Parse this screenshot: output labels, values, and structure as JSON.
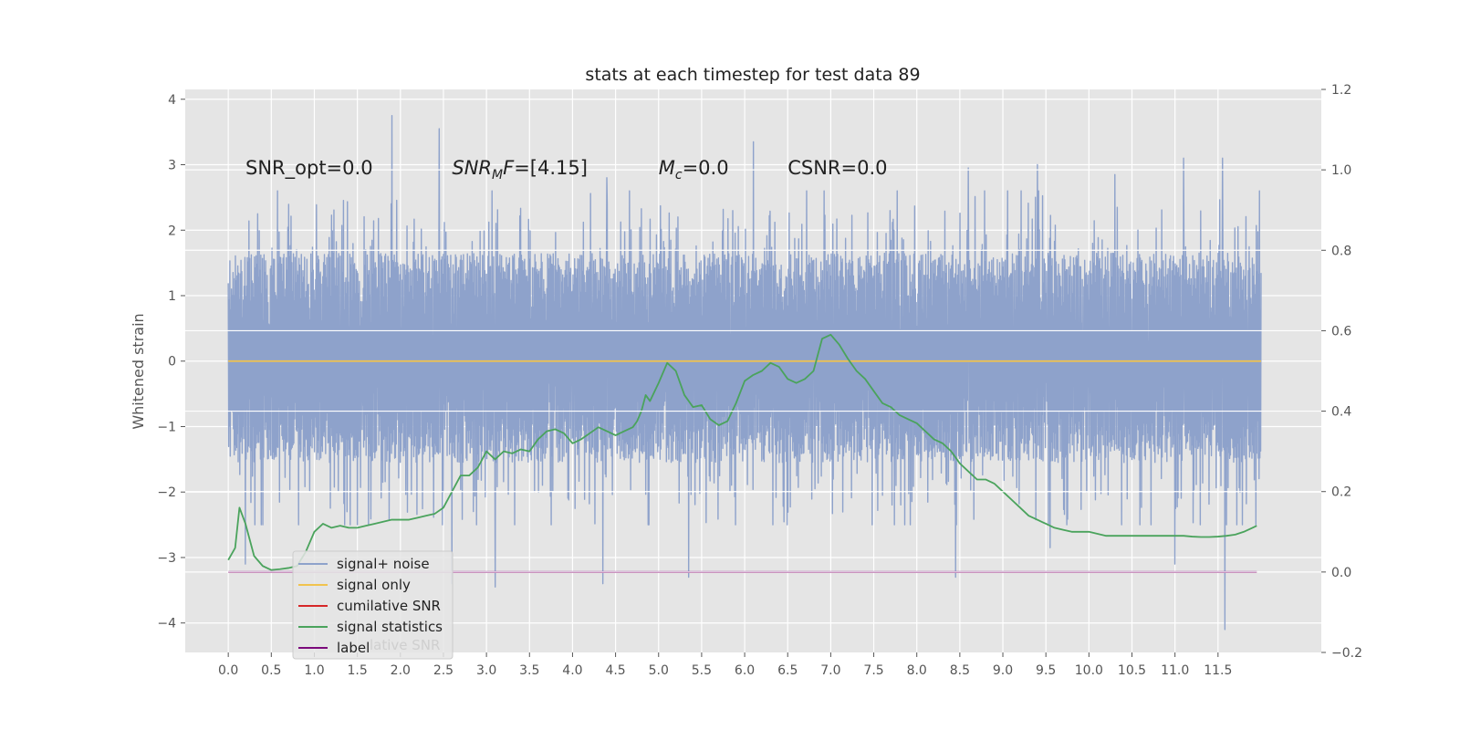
{
  "chart_data": {
    "type": "line",
    "title": "stats at each timestep for test data 89",
    "ylabel": "Whitened strain",
    "y2label": "",
    "xlabel": "",
    "xlim": [
      -0.5,
      12.7
    ],
    "ylim": [
      -4.45,
      4.15
    ],
    "y2lim": [
      -0.2,
      1.2
    ],
    "x_ticks": [
      "0.0",
      "0.5",
      "1.0",
      "1.5",
      "2.0",
      "2.5",
      "3.0",
      "3.5",
      "4.0",
      "4.5",
      "5.0",
      "5.5",
      "6.0",
      "6.5",
      "7.0",
      "7.5",
      "8.0",
      "8.5",
      "9.0",
      "9.5",
      "10.0",
      "10.5",
      "11.0",
      "11.5"
    ],
    "y_ticks": [
      "-4",
      "-3",
      "-2",
      "-1",
      "0",
      "1",
      "2",
      "3",
      "4"
    ],
    "y2_ticks": [
      "-0.2",
      "0.0",
      "0.2",
      "0.4",
      "0.6",
      "0.8",
      "1.0",
      "1.2"
    ],
    "grid": true,
    "legend_position": "lower-left",
    "annotations": [
      {
        "key": "snr_opt",
        "text": "SNR_opt=0.0",
        "x": 0.2,
        "y": 2.95
      },
      {
        "key": "snr_mf",
        "text": "SNR_MF=[4.15]",
        "x": 2.6,
        "y": 2.95
      },
      {
        "key": "mc",
        "text": "M_c=0.0",
        "x": 5.0,
        "y": 2.95
      },
      {
        "key": "csnr",
        "text": "CSNR=0.0",
        "x": 6.5,
        "y": 2.95
      }
    ],
    "legend": [
      {
        "name": "signal+ noise",
        "color": "#8ea2cb"
      },
      {
        "name": "signal only",
        "color": "#f1c34e"
      },
      {
        "name": "cumilative SNR",
        "color": "#d62728"
      },
      {
        "name": "signal statistics",
        "color": "#4aa35c"
      },
      {
        "name": "label",
        "color": "#7b0a7b"
      }
    ],
    "legend_hidden_text": "lative SNR",
    "series": [
      {
        "name": "signal+ noise",
        "axis": "left",
        "color": "#8ea2cb",
        "style": "noise",
        "x_range": [
          0.0,
          12.0
        ],
        "envelope": {
          "upper": 1.65,
          "lower": -1.55,
          "spike_max": 3.75,
          "spike_min": -4.1
        },
        "spikes": [
          {
            "x": 1.9,
            "y": 3.75
          },
          {
            "x": 2.45,
            "y": 3.55
          },
          {
            "x": 6.1,
            "y": 3.35
          },
          {
            "x": 11.1,
            "y": 3.1
          },
          {
            "x": 11.55,
            "y": 3.1
          },
          {
            "x": 9.4,
            "y": 3.0
          },
          {
            "x": 8.6,
            "y": 2.95
          },
          {
            "x": 10.3,
            "y": 2.85
          },
          {
            "x": 4.4,
            "y": 2.8
          },
          {
            "x": 11.58,
            "y": -4.1
          },
          {
            "x": 3.1,
            "y": -3.45
          },
          {
            "x": 4.35,
            "y": -3.4
          },
          {
            "x": 5.35,
            "y": -3.3
          },
          {
            "x": 8.45,
            "y": -3.3
          },
          {
            "x": 11.0,
            "y": -3.1
          },
          {
            "x": 0.2,
            "y": -3.1
          },
          {
            "x": 9.55,
            "y": -2.85
          },
          {
            "x": 2.6,
            "y": -3.4
          },
          {
            "x": 6.0,
            "y": 1.0
          }
        ]
      },
      {
        "name": "signal only",
        "axis": "left",
        "color": "#f1c34e",
        "x": [
          0.0,
          12.0
        ],
        "y": [
          0.0,
          0.0
        ]
      },
      {
        "name": "cumilative SNR",
        "axis": "right",
        "color": "#d62728",
        "x": [
          0.0,
          11.95
        ],
        "y": [
          0.0,
          0.0
        ]
      },
      {
        "name": "signal statistics",
        "axis": "right",
        "color": "#4aa35c",
        "x": [
          0.0,
          0.08,
          0.13,
          0.2,
          0.3,
          0.4,
          0.5,
          0.6,
          0.7,
          0.8,
          0.9,
          1.0,
          1.1,
          1.2,
          1.3,
          1.4,
          1.5,
          1.6,
          1.7,
          1.8,
          1.9,
          2.0,
          2.1,
          2.2,
          2.3,
          2.4,
          2.5,
          2.6,
          2.7,
          2.8,
          2.9,
          3.0,
          3.1,
          3.2,
          3.3,
          3.4,
          3.5,
          3.6,
          3.7,
          3.8,
          3.9,
          4.0,
          4.1,
          4.2,
          4.3,
          4.4,
          4.5,
          4.6,
          4.7,
          4.75,
          4.8,
          4.85,
          4.9,
          5.0,
          5.1,
          5.2,
          5.3,
          5.4,
          5.5,
          5.6,
          5.7,
          5.8,
          5.9,
          6.0,
          6.1,
          6.2,
          6.3,
          6.4,
          6.5,
          6.6,
          6.7,
          6.8,
          6.9,
          7.0,
          7.1,
          7.2,
          7.3,
          7.4,
          7.5,
          7.6,
          7.7,
          7.8,
          7.9,
          8.0,
          8.1,
          8.2,
          8.3,
          8.4,
          8.5,
          8.6,
          8.7,
          8.8,
          8.9,
          9.0,
          9.1,
          9.2,
          9.3,
          9.4,
          9.5,
          9.6,
          9.7,
          9.8,
          9.9,
          10.0,
          10.1,
          10.2,
          10.3,
          10.4,
          10.5,
          10.6,
          10.7,
          10.8,
          10.9,
          11.0,
          11.1,
          11.2,
          11.3,
          11.4,
          11.5,
          11.6,
          11.7,
          11.8,
          11.9,
          11.95
        ],
        "y": [
          0.03,
          0.06,
          0.16,
          0.12,
          0.04,
          0.015,
          0.005,
          0.007,
          0.01,
          0.015,
          0.05,
          0.1,
          0.12,
          0.11,
          0.115,
          0.11,
          0.11,
          0.115,
          0.12,
          0.125,
          0.13,
          0.13,
          0.13,
          0.135,
          0.14,
          0.145,
          0.16,
          0.2,
          0.24,
          0.24,
          0.26,
          0.3,
          0.28,
          0.3,
          0.295,
          0.305,
          0.3,
          0.33,
          0.35,
          0.355,
          0.345,
          0.32,
          0.33,
          0.345,
          0.36,
          0.35,
          0.34,
          0.35,
          0.36,
          0.375,
          0.4,
          0.44,
          0.425,
          0.47,
          0.52,
          0.5,
          0.44,
          0.41,
          0.415,
          0.38,
          0.365,
          0.375,
          0.42,
          0.475,
          0.49,
          0.5,
          0.52,
          0.51,
          0.48,
          0.47,
          0.48,
          0.5,
          0.58,
          0.59,
          0.565,
          0.53,
          0.5,
          0.48,
          0.45,
          0.42,
          0.41,
          0.39,
          0.38,
          0.37,
          0.35,
          0.33,
          0.32,
          0.3,
          0.27,
          0.25,
          0.23,
          0.23,
          0.22,
          0.2,
          0.18,
          0.16,
          0.14,
          0.13,
          0.12,
          0.11,
          0.105,
          0.1,
          0.1,
          0.1,
          0.095,
          0.09,
          0.09,
          0.09,
          0.09,
          0.09,
          0.09,
          0.09,
          0.09,
          0.09,
          0.09,
          0.088,
          0.087,
          0.087,
          0.088,
          0.09,
          0.093,
          0.1,
          0.11,
          0.115
        ]
      },
      {
        "name": "label",
        "axis": "right",
        "color": "#7b0a7b",
        "x": [
          0.0,
          11.95
        ],
        "y": [
          0.0,
          0.0
        ]
      }
    ]
  }
}
